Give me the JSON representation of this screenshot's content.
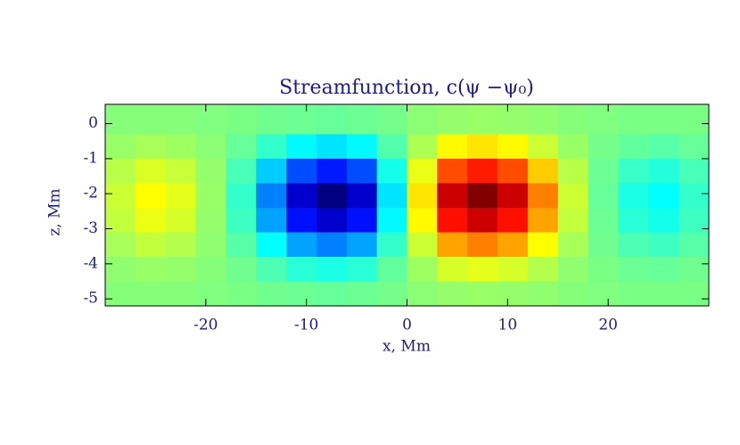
{
  "chart_data": {
    "type": "heatmap",
    "title": "Streamfunction, c(ψ −ψ₀)",
    "xlabel": "x, Mm",
    "ylabel": "z, Mm",
    "xlim": [
      -30,
      30
    ],
    "ylim": [
      -5.2,
      0.55
    ],
    "xticks": [
      -20,
      -10,
      0,
      10,
      20
    ],
    "yticks": [
      0,
      -1,
      -2,
      -3,
      -4,
      -5
    ],
    "colormap": "jet",
    "zlim": [
      -1,
      1
    ],
    "xbins": [
      -30,
      -27,
      -24,
      -21,
      -18,
      -15,
      -12,
      -9,
      -6,
      -3,
      0,
      3,
      6,
      9,
      12,
      15,
      18,
      21,
      24,
      27,
      30
    ],
    "ybins": [
      0.55,
      -0.3,
      -1.0,
      -1.7,
      -2.4,
      -3.1,
      -3.8,
      -4.5,
      -5.2
    ],
    "z": [
      [
        0.01,
        0.01,
        0.01,
        0,
        -0.01,
        -0.03,
        -0.04,
        -0.05,
        -0.04,
        -0.02,
        0.02,
        0.04,
        0.05,
        0.04,
        0.03,
        0.01,
        0,
        -0.01,
        -0.01,
        -0.01
      ],
      [
        0.05,
        0.08,
        0.06,
        0.02,
        -0.05,
        -0.15,
        -0.26,
        -0.3,
        -0.26,
        -0.09,
        0.09,
        0.26,
        0.3,
        0.26,
        0.15,
        0.05,
        -0.02,
        -0.06,
        -0.08,
        -0.05
      ],
      [
        0.11,
        0.18,
        0.14,
        0.04,
        -0.11,
        -0.35,
        -0.6,
        -0.7,
        -0.6,
        -0.21,
        0.21,
        0.6,
        0.7,
        0.6,
        0.35,
        0.11,
        -0.04,
        -0.14,
        -0.18,
        -0.11
      ],
      [
        0.15,
        0.25,
        0.2,
        0.05,
        -0.15,
        -0.5,
        -0.85,
        -1.0,
        -0.85,
        -0.3,
        0.3,
        0.85,
        1.0,
        0.85,
        0.5,
        0.15,
        -0.05,
        -0.2,
        -0.25,
        -0.15
      ],
      [
        0.13,
        0.21,
        0.17,
        0.04,
        -0.13,
        -0.43,
        -0.72,
        -0.85,
        -0.72,
        -0.26,
        0.26,
        0.72,
        0.85,
        0.72,
        0.43,
        0.13,
        -0.04,
        -0.17,
        -0.21,
        -0.13
      ],
      [
        0.08,
        0.13,
        0.1,
        0.03,
        -0.08,
        -0.25,
        -0.43,
        -0.5,
        -0.43,
        -0.15,
        0.15,
        0.43,
        0.5,
        0.43,
        0.25,
        0.08,
        -0.03,
        -0.1,
        -0.13,
        -0.08
      ],
      [
        0.03,
        0.05,
        0.04,
        0.01,
        -0.03,
        -0.1,
        -0.17,
        -0.2,
        -0.17,
        -0.06,
        0.06,
        0.17,
        0.2,
        0.17,
        0.1,
        0.03,
        -0.01,
        -0.04,
        -0.05,
        -0.03
      ],
      [
        0.01,
        0.01,
        0.01,
        0,
        -0.01,
        -0.03,
        -0.04,
        -0.05,
        -0.04,
        -0.02,
        0.02,
        0.04,
        0.05,
        0.04,
        0.03,
        0.01,
        0,
        -0.01,
        -0.01,
        -0.01
      ]
    ]
  }
}
